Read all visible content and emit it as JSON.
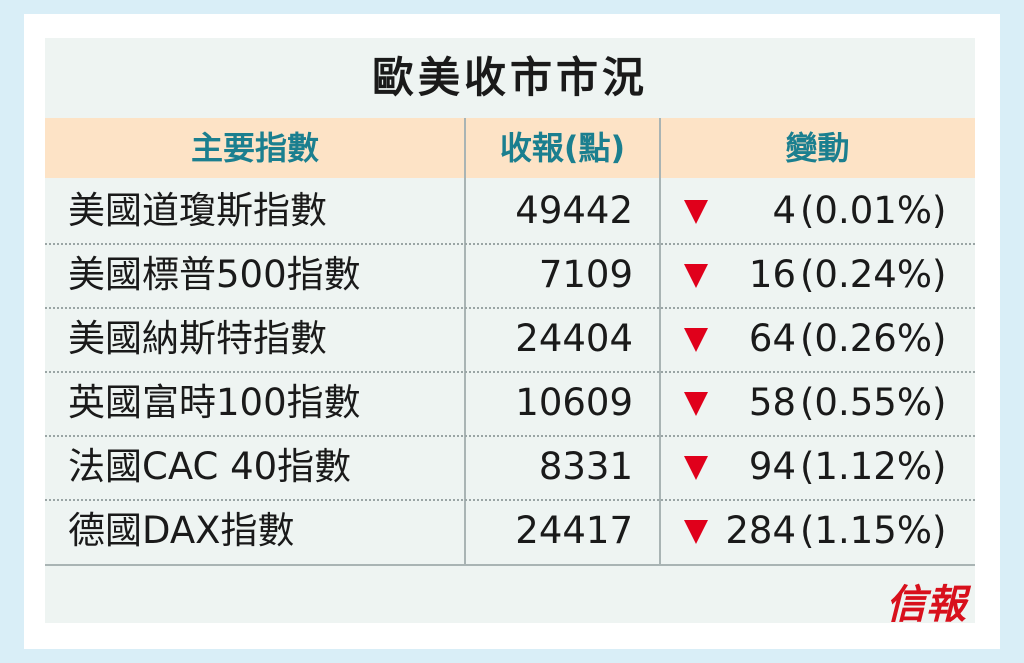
{
  "title": "歐美收市市況",
  "table": {
    "headers": [
      "主要指數",
      "收報(點)",
      "變動"
    ],
    "rows": [
      {
        "name": "美國道瓊斯指數",
        "close": 49442,
        "change": 4,
        "pct": "(0.01%)"
      },
      {
        "name": "美國標普500指數",
        "close": 7109,
        "change": 16,
        "pct": "(0.24%)"
      },
      {
        "name": "美國納斯特指數",
        "close": 24404,
        "change": 64,
        "pct": "(0.26%)"
      },
      {
        "name": "英國富時100指數",
        "close": 10609,
        "change": 58,
        "pct": "(0.55%)"
      },
      {
        "name": "法國CAC 40指數",
        "close": 8331,
        "change": 94,
        "pct": "(1.12%)"
      },
      {
        "name": "德國DAX指數",
        "close": 24417,
        "change": 284,
        "pct": "(1.15%)"
      }
    ]
  },
  "footer": {
    "brand": "信報"
  }
}
